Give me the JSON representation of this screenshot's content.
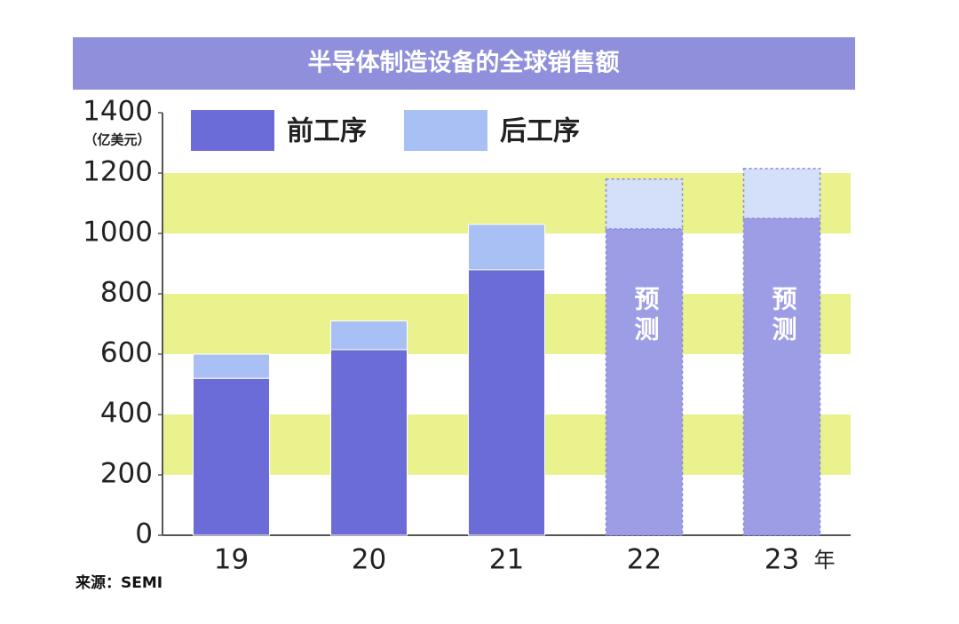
{
  "chart_data": {
    "type": "stacked_bar",
    "title": "半导体制造设备的全球销售额",
    "y_label": "（亿美元）",
    "x_label": "年",
    "source": "来源：SEMI",
    "categories": [
      "19",
      "20",
      "21",
      "22",
      "23"
    ],
    "series": [
      {
        "name": "前工序",
        "color": "#6c6cd8",
        "values": [
          520,
          615,
          880,
          1015,
          1050
        ]
      },
      {
        "name": "后工序",
        "color": "#a9c0f4",
        "values": [
          80,
          95,
          150,
          165,
          165
        ]
      }
    ],
    "forecast_colors": [
      "#9d9de6",
      "#d4e0fa"
    ],
    "annotations": [
      {
        "text": "预测",
        "category": "22"
      },
      {
        "text": "预测",
        "category": "23"
      }
    ],
    "ylim": [
      0,
      1400
    ],
    "yticks": [
      0,
      200,
      400,
      600,
      800,
      1000,
      1200,
      1400
    ],
    "band_color": "#e9f28c",
    "legend": "top-left"
  }
}
